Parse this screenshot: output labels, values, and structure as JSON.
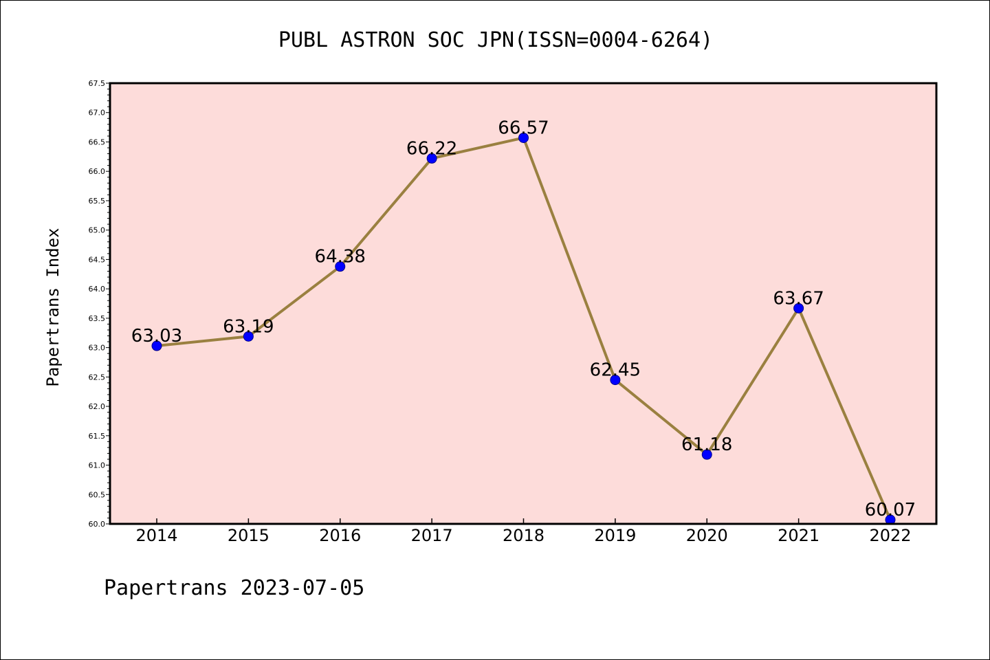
{
  "colors": {
    "plot_background": "#fddcda",
    "line": "#9a8040",
    "marker": "#0000ff",
    "axes": "#000000"
  },
  "footer": "Papertrans 2023-07-05",
  "chart_data": {
    "type": "line",
    "title": "PUBL ASTRON SOC JPN(ISSN=0004-6264)",
    "xlabel": "",
    "ylabel": "Papertrans Index",
    "categories": [
      "2014",
      "2015",
      "2016",
      "2017",
      "2018",
      "2019",
      "2020",
      "2021",
      "2022"
    ],
    "series": [
      {
        "values": [
          63.03,
          63.19,
          64.38,
          66.22,
          66.57,
          62.45,
          61.18,
          63.67,
          60.07
        ]
      }
    ],
    "data_labels": [
      "63.03",
      "63.19",
      "64.38",
      "66.22",
      "66.57",
      "62.45",
      "61.18",
      "63.67",
      "60.07"
    ],
    "ylim": [
      60.0,
      67.5
    ],
    "yticks": [
      "60.0",
      "60.5",
      "61.0",
      "61.5",
      "62.0",
      "62.5",
      "63.0",
      "63.5",
      "64.0",
      "64.5",
      "65.0",
      "65.5",
      "66.0",
      "66.5",
      "67.0",
      "67.5"
    ],
    "grid": false,
    "legend": "none"
  }
}
